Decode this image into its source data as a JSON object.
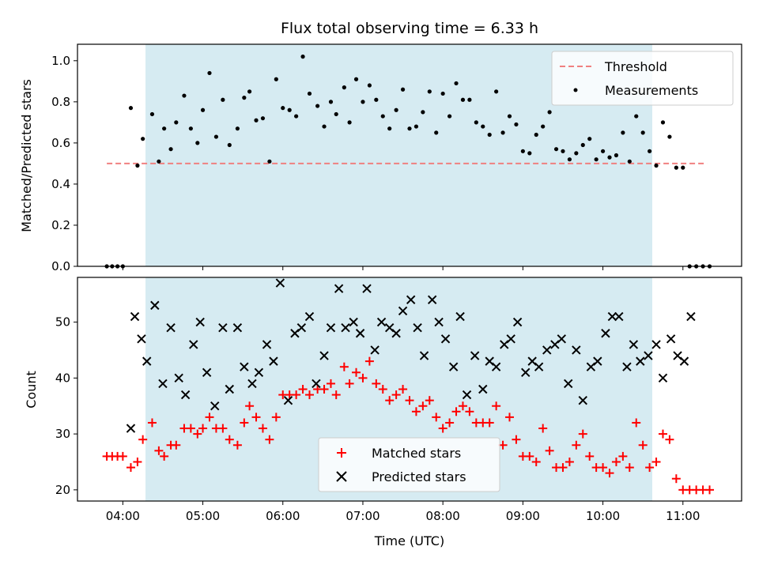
{
  "chart_data": [
    {
      "type": "scatter",
      "title": "Flux total observing time = 6.33 h",
      "xlabel": "",
      "ylabel": "Matched/Predicted stars",
      "xlim": [
        "03:26",
        "11:44"
      ],
      "ylim": [
        0,
        1.08
      ],
      "yticks": [
        "0.0",
        "0.2",
        "0.4",
        "0.6",
        "0.8",
        "1.0"
      ],
      "shaded_span": [
        "04:17",
        "10:37"
      ],
      "shade_color": "#add8e6",
      "legend_position": "top-right",
      "threshold": {
        "name": "Threshold",
        "y": 0.5,
        "x": [
          "03:48",
          "11:18"
        ],
        "color": "#f08080"
      },
      "series": [
        {
          "name": "Measurements",
          "marker": "dot",
          "color": "#000000",
          "x": [
            "03:48",
            "03:52",
            "03:56",
            "04:00",
            "04:06",
            "04:11",
            "04:15",
            "04:22",
            "04:27",
            "04:31",
            "04:36",
            "04:40",
            "04:46",
            "04:51",
            "04:56",
            "05:00",
            "05:05",
            "05:10",
            "05:15",
            "05:20",
            "05:26",
            "05:31",
            "05:35",
            "05:40",
            "05:45",
            "05:50",
            "05:55",
            "06:00",
            "06:05",
            "06:10",
            "06:15",
            "06:20",
            "06:26",
            "06:31",
            "06:36",
            "06:40",
            "06:46",
            "06:50",
            "06:55",
            "07:00",
            "07:05",
            "07:10",
            "07:15",
            "07:20",
            "07:25",
            "07:30",
            "07:35",
            "07:40",
            "07:45",
            "07:50",
            "07:55",
            "08:00",
            "08:05",
            "08:10",
            "08:15",
            "08:20",
            "08:25",
            "08:30",
            "08:35",
            "08:40",
            "08:45",
            "08:50",
            "08:55",
            "09:00",
            "09:05",
            "09:10",
            "09:15",
            "09:20",
            "09:25",
            "09:30",
            "09:35",
            "09:40",
            "09:45",
            "09:50",
            "09:55",
            "10:00",
            "10:05",
            "10:10",
            "10:15",
            "10:20",
            "10:25",
            "10:30",
            "10:35",
            "10:40",
            "10:45",
            "10:50",
            "10:55",
            "11:00",
            "11:05",
            "11:10",
            "11:15",
            "11:20"
          ],
          "y": [
            0,
            0,
            0,
            0,
            0.77,
            0.49,
            0.62,
            0.74,
            0.51,
            0.67,
            0.57,
            0.7,
            0.83,
            0.67,
            0.6,
            0.76,
            0.94,
            0.63,
            0.81,
            0.59,
            0.67,
            0.82,
            0.85,
            0.71,
            0.72,
            0.51,
            0.91,
            0.77,
            0.76,
            0.73,
            1.02,
            0.84,
            0.78,
            0.68,
            0.8,
            0.74,
            0.87,
            0.7,
            0.91,
            0.8,
            0.88,
            0.81,
            0.73,
            0.67,
            0.76,
            0.86,
            0.67,
            0.68,
            0.75,
            0.85,
            0.65,
            0.84,
            0.73,
            0.89,
            0.81,
            0.81,
            0.7,
            0.68,
            0.64,
            0.85,
            0.65,
            0.73,
            0.69,
            0.56,
            0.55,
            0.64,
            0.68,
            0.75,
            0.57,
            0.56,
            0.52,
            0.55,
            0.59,
            0.62,
            0.52,
            0.56,
            0.53,
            0.54,
            0.65,
            0.51,
            0.73,
            0.65,
            0.56,
            0.49,
            0.7,
            0.63,
            0.48,
            0.48,
            0,
            0,
            0,
            0
          ]
        }
      ]
    },
    {
      "type": "scatter",
      "title": "",
      "xlabel": "Time (UTC)",
      "ylabel": "Count",
      "xlim": [
        "03:26",
        "11:44"
      ],
      "ylim": [
        18,
        58
      ],
      "yticks": [
        "20",
        "30",
        "40",
        "50"
      ],
      "xticks": [
        "04:00",
        "05:00",
        "06:00",
        "07:00",
        "08:00",
        "09:00",
        "10:00",
        "11:00"
      ],
      "shaded_span": [
        "04:17",
        "10:37"
      ],
      "shade_color": "#add8e6",
      "legend_position": "bottom-center",
      "series": [
        {
          "name": "Matched stars",
          "marker": "plus",
          "color": "#ff0000",
          "x": [
            "03:48",
            "03:52",
            "03:56",
            "04:00",
            "04:06",
            "04:11",
            "04:15",
            "04:22",
            "04:27",
            "04:31",
            "04:36",
            "04:40",
            "04:46",
            "04:51",
            "04:56",
            "05:00",
            "05:05",
            "05:10",
            "05:15",
            "05:20",
            "05:26",
            "05:31",
            "05:35",
            "05:40",
            "05:45",
            "05:50",
            "05:55",
            "06:00",
            "06:05",
            "06:10",
            "06:15",
            "06:20",
            "06:26",
            "06:31",
            "06:36",
            "06:40",
            "06:46",
            "06:50",
            "06:55",
            "07:00",
            "07:05",
            "07:10",
            "07:15",
            "07:20",
            "07:25",
            "07:30",
            "07:35",
            "07:40",
            "07:45",
            "07:50",
            "07:55",
            "08:00",
            "08:05",
            "08:10",
            "08:15",
            "08:20",
            "08:25",
            "08:30",
            "08:35",
            "08:40",
            "08:45",
            "08:50",
            "08:55",
            "09:00",
            "09:05",
            "09:10",
            "09:15",
            "09:20",
            "09:25",
            "09:30",
            "09:35",
            "09:40",
            "09:45",
            "09:50",
            "09:55",
            "10:00",
            "10:05",
            "10:10",
            "10:15",
            "10:20",
            "10:25",
            "10:30",
            "10:35",
            "10:40",
            "10:45",
            "10:50",
            "10:55",
            "11:00",
            "11:05",
            "11:10",
            "11:15",
            "11:20"
          ],
          "y": [
            26,
            26,
            26,
            26,
            24,
            25,
            29,
            32,
            27,
            26,
            28,
            28,
            31,
            31,
            30,
            31,
            33,
            31,
            31,
            29,
            28,
            32,
            35,
            33,
            31,
            29,
            33,
            37,
            37,
            37,
            38,
            37,
            38,
            38,
            39,
            37,
            42,
            39,
            41,
            40,
            43,
            39,
            38,
            36,
            37,
            38,
            36,
            34,
            35,
            36,
            33,
            31,
            32,
            34,
            35,
            34,
            32,
            32,
            32,
            35,
            28,
            33,
            29,
            26,
            26,
            25,
            31,
            27,
            24,
            24,
            25,
            28,
            30,
            26,
            24,
            24,
            23,
            25,
            26,
            24,
            32,
            28,
            24,
            25,
            30,
            29,
            22,
            20,
            20,
            20,
            20,
            20
          ]
        },
        {
          "name": "Predicted stars",
          "marker": "x",
          "color": "#000000",
          "x": [
            "04:06",
            "04:09",
            "04:14",
            "04:18",
            "04:24",
            "04:30",
            "04:36",
            "04:42",
            "04:47",
            "04:53",
            "04:58",
            "05:03",
            "05:09",
            "05:15",
            "05:20",
            "05:26",
            "05:31",
            "05:37",
            "05:42",
            "05:48",
            "05:53",
            "05:58",
            "06:04",
            "06:09",
            "06:14",
            "06:20",
            "06:25",
            "06:31",
            "06:36",
            "06:42",
            "06:47",
            "06:53",
            "06:58",
            "07:03",
            "07:09",
            "07:14",
            "07:20",
            "07:25",
            "07:30",
            "07:36",
            "07:41",
            "07:46",
            "07:52",
            "07:57",
            "08:02",
            "08:08",
            "08:13",
            "08:18",
            "08:24",
            "08:30",
            "08:35",
            "08:40",
            "08:46",
            "08:51",
            "08:56",
            "09:02",
            "09:07",
            "09:12",
            "09:18",
            "09:24",
            "09:29",
            "09:34",
            "09:40",
            "09:45",
            "09:51",
            "09:56",
            "10:02",
            "10:07",
            "10:12",
            "10:18",
            "10:23",
            "10:28",
            "10:34",
            "10:40",
            "10:45",
            "10:51",
            "10:56",
            "11:01",
            "11:06"
          ],
          "y": [
            31,
            51,
            47,
            43,
            53,
            39,
            49,
            40,
            37,
            46,
            50,
            41,
            35,
            49,
            38,
            49,
            42,
            39,
            41,
            46,
            43,
            57,
            36,
            48,
            49,
            51,
            39,
            44,
            49,
            56,
            49,
            50,
            48,
            56,
            45,
            50,
            49,
            48,
            52,
            54,
            49,
            44,
            54,
            50,
            47,
            42,
            51,
            37,
            44,
            38,
            43,
            42,
            46,
            47,
            50,
            41,
            43,
            42,
            45,
            46,
            47,
            39,
            45,
            36,
            42,
            43,
            48,
            51,
            51,
            42,
            46,
            43,
            44,
            46,
            40,
            47,
            44,
            43,
            51
          ]
        }
      ]
    }
  ]
}
